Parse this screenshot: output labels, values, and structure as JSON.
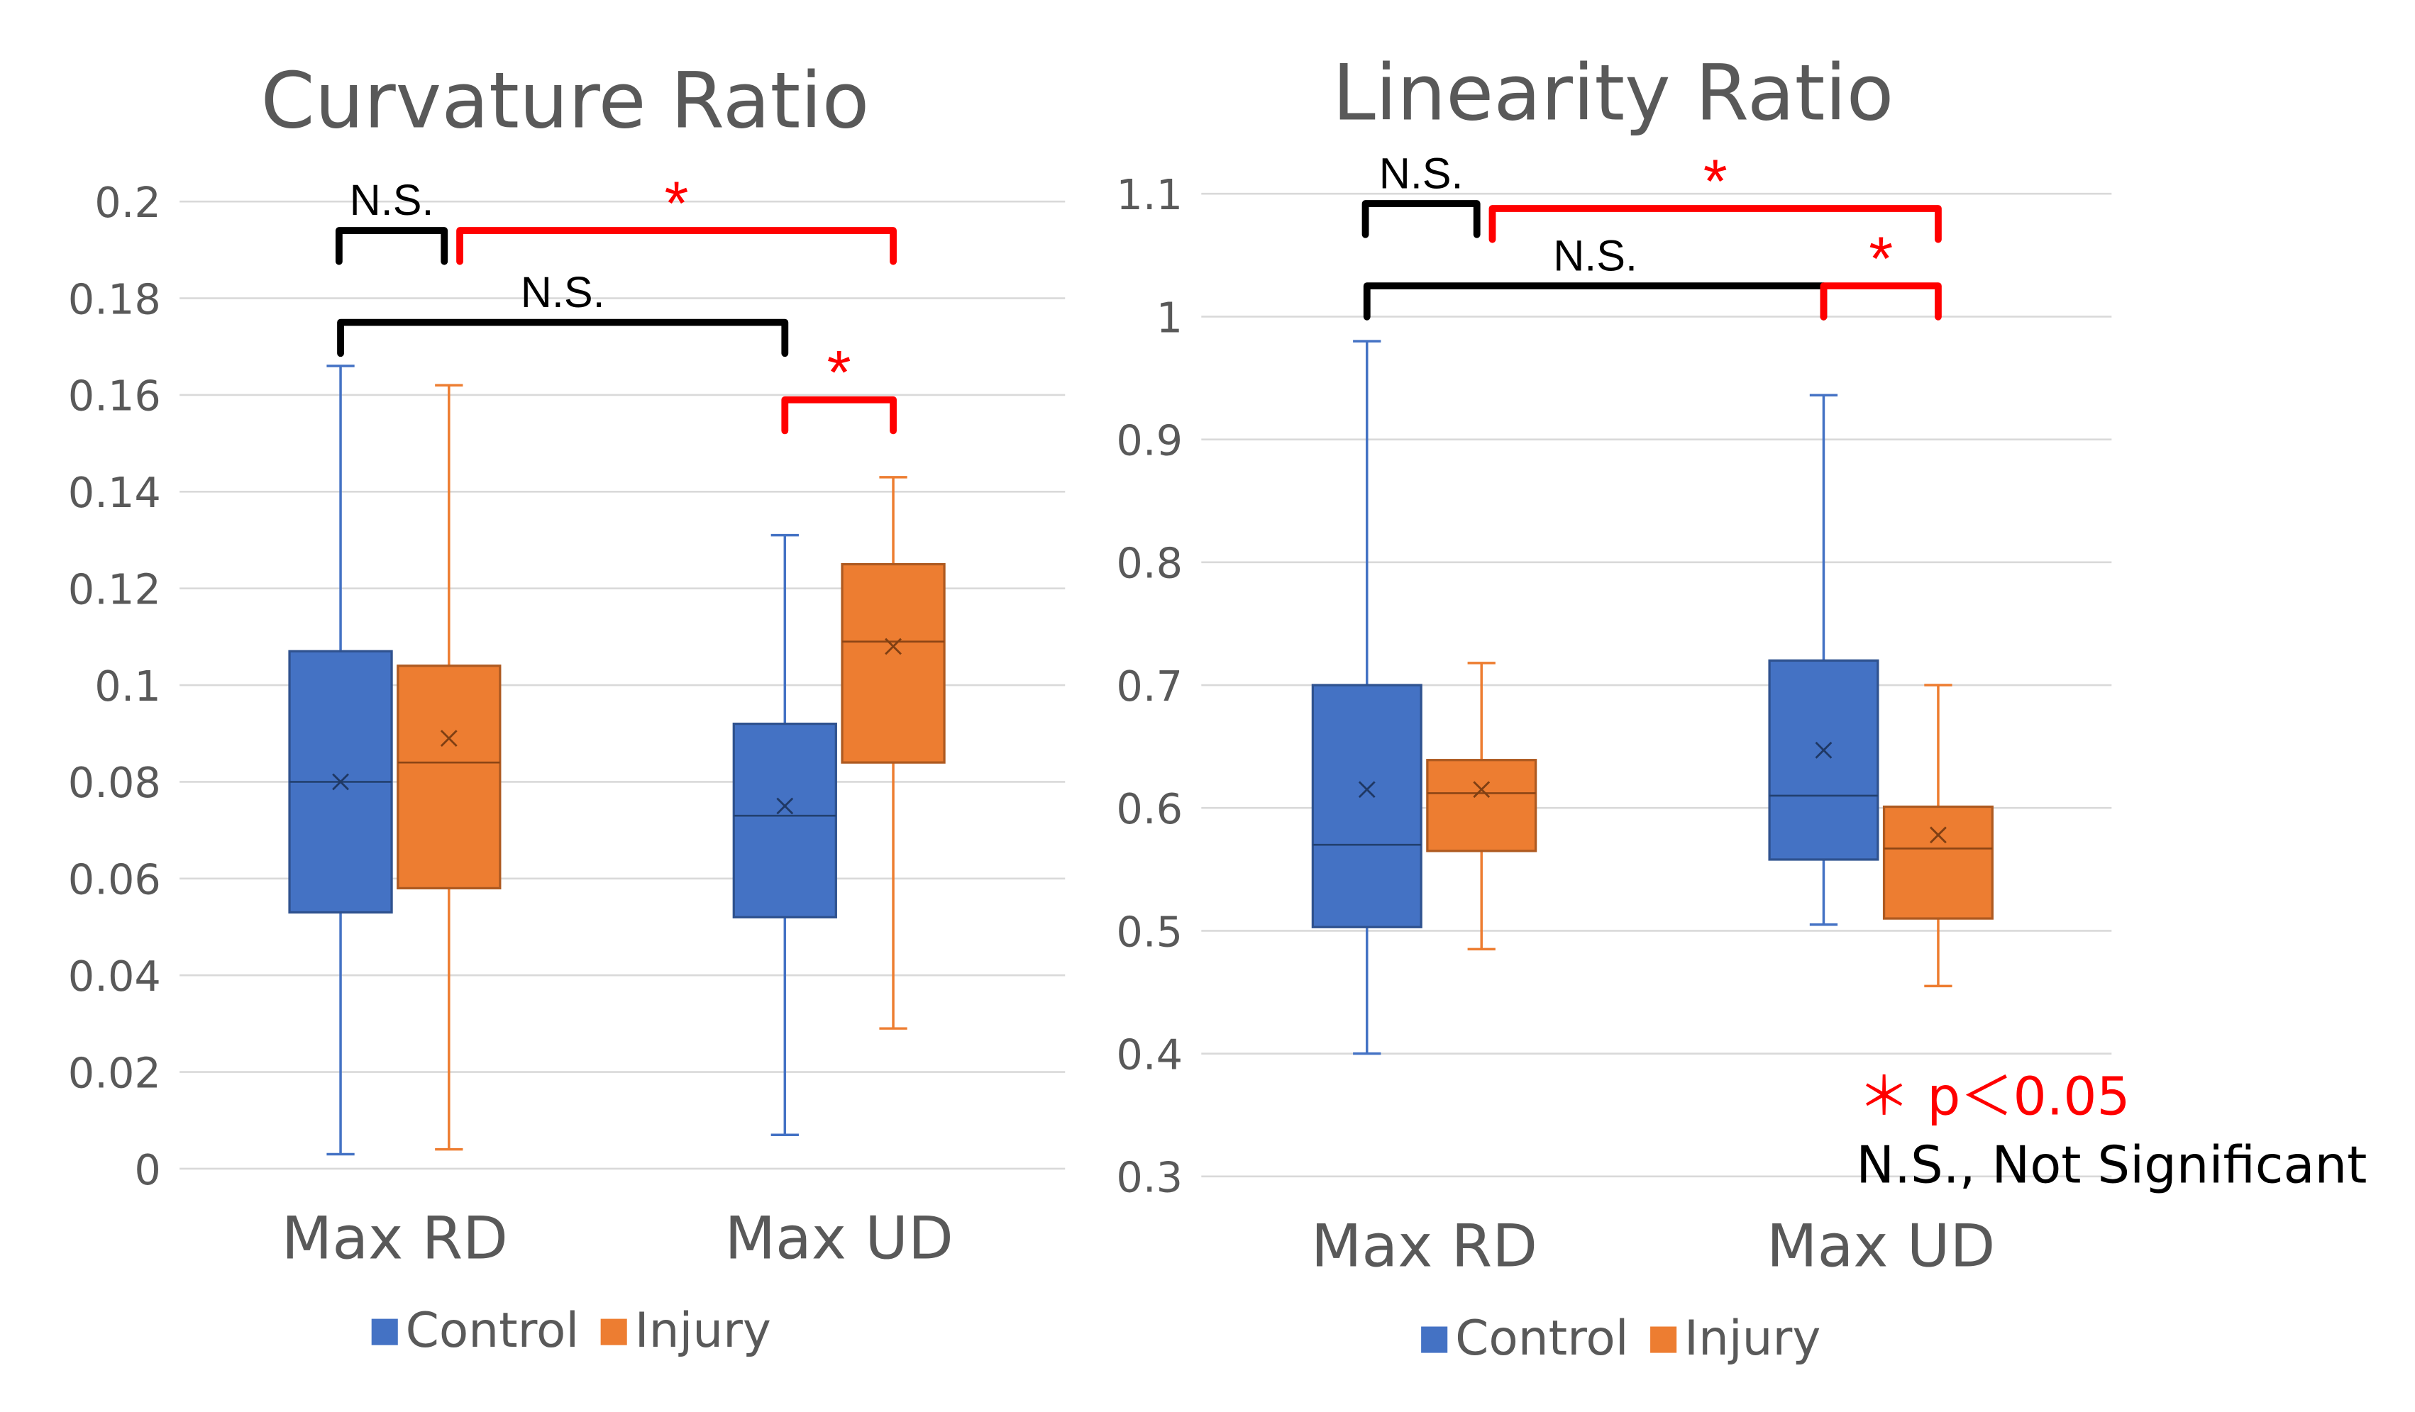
{
  "chart_data": [
    {
      "type": "boxplot",
      "title": "Curvature Ratio",
      "xlabel": "",
      "ylabel": "",
      "ylim": [
        0,
        0.2
      ],
      "yticks": [
        "0",
        "0.02",
        "0.04",
        "0.06",
        "0.08",
        "0.1",
        "0.12",
        "0.14",
        "0.16",
        "0.18",
        "0.2"
      ],
      "categories": [
        "Max RD",
        "Max UD"
      ],
      "legend": [
        {
          "name": "Control",
          "color": "#4472c4"
        },
        {
          "name": "Injury",
          "color": "#ed7d31"
        }
      ],
      "legend_position": "bottom",
      "series": [
        {
          "name": "Control",
          "color": "#4472c4",
          "boxes": [
            {
              "category": "Max RD",
              "min": 0.003,
              "q1": 0.053,
              "median": 0.08,
              "mean": 0.08,
              "q3": 0.107,
              "max": 0.166
            },
            {
              "category": "Max UD",
              "min": 0.007,
              "q1": 0.052,
              "median": 0.073,
              "mean": 0.075,
              "q3": 0.092,
              "max": 0.131
            }
          ]
        },
        {
          "name": "Injury",
          "color": "#ed7d31",
          "boxes": [
            {
              "category": "Max RD",
              "min": 0.004,
              "q1": 0.058,
              "median": 0.084,
              "mean": 0.089,
              "q3": 0.104,
              "max": 0.162
            },
            {
              "category": "Max UD",
              "min": 0.029,
              "q1": 0.084,
              "median": 0.109,
              "mean": 0.108,
              "q3": 0.125,
              "max": 0.143
            }
          ]
        }
      ],
      "significance": [
        {
          "label": "N.S.",
          "color": "#000000",
          "from": "Max RD Control",
          "to": "Max RD Injury",
          "level": 0.194
        },
        {
          "label": "*",
          "color": "#ff0000",
          "from": "Max RD Injury",
          "to": "Max UD Injury",
          "level": 0.194
        },
        {
          "label": "N.S.",
          "color": "#000000",
          "from": "Max RD Control",
          "to": "Max UD Control",
          "level": 0.175
        },
        {
          "label": "*",
          "color": "#ff0000",
          "from": "Max UD Control",
          "to": "Max UD Injury",
          "level": 0.159
        }
      ]
    },
    {
      "type": "boxplot",
      "title": "Linearity Ratio",
      "xlabel": "",
      "ylabel": "",
      "ylim": [
        0.3,
        1.1
      ],
      "yticks": [
        "0.3",
        "0.4",
        "0.5",
        "0.6",
        "0.7",
        "0.8",
        "0.9",
        "1",
        "1.1"
      ],
      "categories": [
        "Max RD",
        "Max UD"
      ],
      "legend": [
        {
          "name": "Control",
          "color": "#4472c4"
        },
        {
          "name": "Injury",
          "color": "#ed7d31"
        }
      ],
      "legend_position": "bottom",
      "series": [
        {
          "name": "Control",
          "color": "#4472c4",
          "boxes": [
            {
              "category": "Max RD",
              "min": 0.4,
              "q1": 0.503,
              "median": 0.57,
              "mean": 0.615,
              "q3": 0.7,
              "max": 0.98
            },
            {
              "category": "Max UD",
              "min": 0.505,
              "q1": 0.558,
              "median": 0.61,
              "mean": 0.647,
              "q3": 0.72,
              "max": 0.936
            }
          ]
        },
        {
          "name": "Injury",
          "color": "#ed7d31",
          "boxes": [
            {
              "category": "Max RD",
              "min": 0.485,
              "q1": 0.565,
              "median": 0.612,
              "mean": 0.615,
              "q3": 0.639,
              "max": 0.718
            },
            {
              "category": "Max UD",
              "min": 0.455,
              "q1": 0.51,
              "median": 0.567,
              "mean": 0.578,
              "q3": 0.601,
              "max": 0.7
            }
          ]
        }
      ],
      "significance": [
        {
          "label": "N.S.",
          "color": "#000000",
          "from": "Max RD Control",
          "to": "Max RD Injury",
          "level": 1.092
        },
        {
          "label": "*",
          "color": "#ff0000",
          "from": "Max RD Injury",
          "to": "Max UD Injury",
          "level": 1.088
        },
        {
          "label": "N.S.",
          "color": "#000000",
          "from": "Max RD Control",
          "to": "Max UD Control",
          "level": 1.025
        },
        {
          "label": "*",
          "color": "#ff0000",
          "from": "Max UD Control",
          "to": "Max UD Injury",
          "level": 1.025
        }
      ],
      "annotations": [
        "＊ p＜0.05",
        "N.S., Not Significant"
      ]
    }
  ]
}
